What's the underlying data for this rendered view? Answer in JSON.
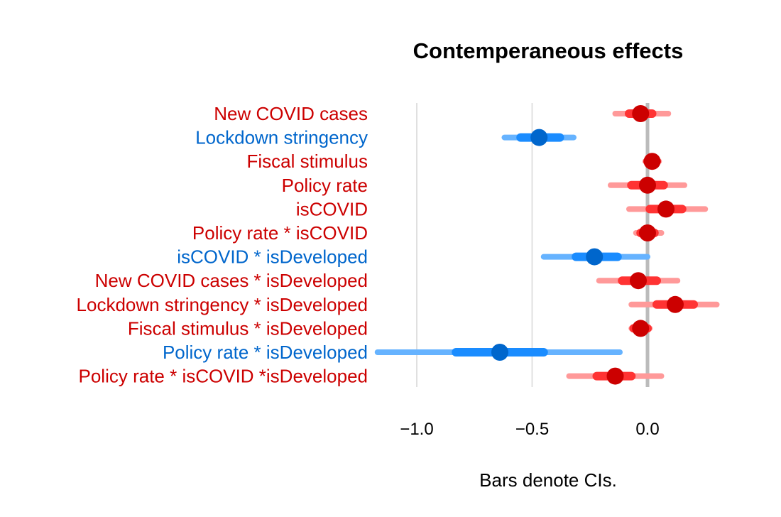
{
  "chart_data": {
    "type": "interval",
    "title": "Contemperaneous effects",
    "xlabel": "Bars denote CIs.",
    "ylabel": "",
    "xlim": [
      -1.15,
      0.3
    ],
    "xticks": [
      -1.0,
      -0.5,
      0.0
    ],
    "xtick_labels": [
      "−1.0",
      "−0.5",
      "0.0"
    ],
    "grid": true,
    "legend": "none",
    "colors": {
      "positive": {
        "point": "#cc0000",
        "inner": "#ff3333",
        "outer": "#ff9999"
      },
      "negative": {
        "point": "#0066cc",
        "inner": "#1a8cff",
        "outer": "#66b3ff"
      },
      "zero_line": "#bbbbbb",
      "grid": "#e0e0e0"
    },
    "rows": [
      {
        "label": "New COVID cases",
        "sign": "positive",
        "estimate": -0.03,
        "ci_inner": [
          -0.08,
          0.02
        ],
        "ci_outer": [
          -0.14,
          0.09
        ]
      },
      {
        "label": "Lockdown stringency",
        "sign": "negative",
        "estimate": -0.47,
        "ci_inner": [
          -0.55,
          -0.38
        ],
        "ci_outer": [
          -0.62,
          -0.32
        ]
      },
      {
        "label": "Fiscal stimulus",
        "sign": "positive",
        "estimate": 0.02,
        "ci_inner": [
          0.0,
          0.04
        ],
        "ci_outer": [
          -0.01,
          0.05
        ]
      },
      {
        "label": "Policy rate",
        "sign": "positive",
        "estimate": 0.0,
        "ci_inner": [
          -0.07,
          0.07
        ],
        "ci_outer": [
          -0.16,
          0.16
        ]
      },
      {
        "label": "isCOVID",
        "sign": "positive",
        "estimate": 0.08,
        "ci_inner": [
          0.01,
          0.15
        ],
        "ci_outer": [
          -0.08,
          0.25
        ]
      },
      {
        "label": "Policy rate * isCOVID",
        "sign": "positive",
        "estimate": 0.0,
        "ci_inner": [
          -0.03,
          0.03
        ],
        "ci_outer": [
          -0.05,
          0.06
        ]
      },
      {
        "label": "isCOVID * isDeveloped",
        "sign": "negative",
        "estimate": -0.23,
        "ci_inner": [
          -0.31,
          -0.13
        ],
        "ci_outer": [
          -0.45,
          0.0
        ]
      },
      {
        "label": "New COVID cases * isDeveloped",
        "sign": "positive",
        "estimate": -0.04,
        "ci_inner": [
          -0.11,
          0.04
        ],
        "ci_outer": [
          -0.21,
          0.13
        ]
      },
      {
        "label": "Lockdown stringency * isDeveloped",
        "sign": "positive",
        "estimate": 0.12,
        "ci_inner": [
          0.04,
          0.2
        ],
        "ci_outer": [
          -0.07,
          0.3
        ]
      },
      {
        "label": "Fiscal stimulus * isDeveloped",
        "sign": "positive",
        "estimate": -0.03,
        "ci_inner": [
          -0.06,
          0.0
        ],
        "ci_outer": [
          -0.07,
          0.01
        ]
      },
      {
        "label": "Policy rate * isDeveloped",
        "sign": "negative",
        "estimate": -0.64,
        "ci_inner": [
          -0.83,
          -0.45
        ],
        "ci_outer": [
          -1.17,
          -0.12
        ]
      },
      {
        "label": "Policy rate * isCOVID *isDeveloped",
        "sign": "positive",
        "estimate": -0.14,
        "ci_inner": [
          -0.22,
          -0.07
        ],
        "ci_outer": [
          -0.34,
          0.06
        ]
      }
    ]
  }
}
